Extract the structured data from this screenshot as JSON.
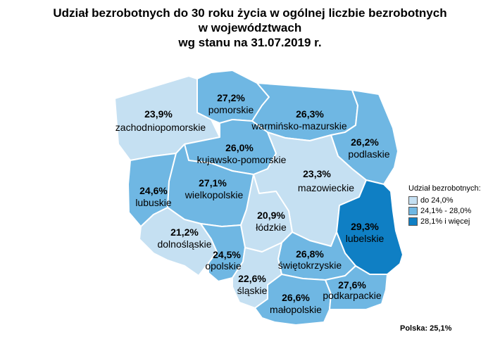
{
  "title": {
    "line1": "Udział bezrobotnych do 30 roku życia w ogólnej liczbie bezrobotnych",
    "line2": "w województwach",
    "line3": "wg stanu na 31.07.2019 r."
  },
  "colors": {
    "low": "#c5e0f2",
    "mid": "#6fb7e3",
    "high": "#0f7fc4"
  },
  "legend": {
    "title": "Udział bezrobotnych:",
    "items": [
      {
        "label": "do 24,0%",
        "class": "low"
      },
      {
        "label": "24,1% - 28,0%",
        "class": "mid"
      },
      {
        "label": "28,1% i więcej",
        "class": "high"
      }
    ]
  },
  "total": "Polska: 25,1%",
  "regions": [
    {
      "id": "zachodniopomorskie",
      "name": "zachodniopomorskie",
      "value": "23,9%",
      "value_num": 23.9,
      "class": "low"
    },
    {
      "id": "pomorskie",
      "name": "pomorskie",
      "value": "27,2%",
      "value_num": 27.2,
      "class": "mid"
    },
    {
      "id": "warminsko-mazurskie",
      "name": "warmińsko-mazurskie",
      "value": "26,3%",
      "value_num": 26.3,
      "class": "mid"
    },
    {
      "id": "podlaskie",
      "name": "podlaskie",
      "value": "26,2%",
      "value_num": 26.2,
      "class": "mid"
    },
    {
      "id": "kujawsko-pomorskie",
      "name": "kujawsko-pomorskie",
      "value": "26,0%",
      "value_num": 26.0,
      "class": "mid"
    },
    {
      "id": "lubuskie",
      "name": "lubuskie",
      "value": "24,6%",
      "value_num": 24.6,
      "class": "mid"
    },
    {
      "id": "wielkopolskie",
      "name": "wielkopolskie",
      "value": "27,1%",
      "value_num": 27.1,
      "class": "mid"
    },
    {
      "id": "mazowieckie",
      "name": "mazowieckie",
      "value": "23,3%",
      "value_num": 23.3,
      "class": "low"
    },
    {
      "id": "lodzkie",
      "name": "łódzkie",
      "value": "20,9%",
      "value_num": 20.9,
      "class": "low"
    },
    {
      "id": "lubelskie",
      "name": "lubelskie",
      "value": "29,3%",
      "value_num": 29.3,
      "class": "high"
    },
    {
      "id": "dolnoslaskie",
      "name": "dolnośląskie",
      "value": "21,2%",
      "value_num": 21.2,
      "class": "low"
    },
    {
      "id": "opolskie",
      "name": "opolskie",
      "value": "24,5%",
      "value_num": 24.5,
      "class": "mid"
    },
    {
      "id": "swietokrzyskie",
      "name": "świętokrzyskie",
      "value": "26,8%",
      "value_num": 26.8,
      "class": "mid"
    },
    {
      "id": "slaskie",
      "name": "śląskie",
      "value": "22,6%",
      "value_num": 22.6,
      "class": "low"
    },
    {
      "id": "malopolskie",
      "name": "małopolskie",
      "value": "26,6%",
      "value_num": 26.6,
      "class": "mid"
    },
    {
      "id": "podkarpackie",
      "name": "podkarpackie",
      "value": "27,6%",
      "value_num": 27.6,
      "class": "mid"
    }
  ]
}
